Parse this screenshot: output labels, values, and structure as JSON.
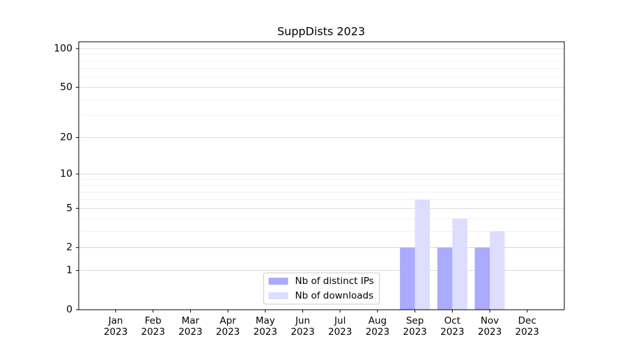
{
  "chart_data": {
    "type": "bar",
    "title": "SuppDists 2023",
    "categories": [
      "Jan\n2023",
      "Feb\n2023",
      "Mar\n2023",
      "Apr\n2023",
      "May\n2023",
      "Jun\n2023",
      "Jul\n2023",
      "Aug\n2023",
      "Sep\n2023",
      "Oct\n2023",
      "Nov\n2023",
      "Dec\n2023"
    ],
    "series": [
      {
        "name": "Nb of distinct IPs",
        "color": "#aaaaff",
        "values": [
          0,
          0,
          0,
          0,
          0,
          0,
          0,
          0,
          2,
          2,
          2,
          0
        ]
      },
      {
        "name": "Nb of downloads",
        "color": "#ddddff",
        "values": [
          0,
          0,
          0,
          0,
          0,
          0,
          0,
          0,
          6,
          4,
          3,
          0
        ]
      }
    ],
    "yscale": "log1p",
    "ylim": [
      0,
      113
    ],
    "yticks": [
      0,
      1,
      2,
      5,
      10,
      20,
      50,
      100
    ],
    "yticks_minor": [
      3,
      4,
      6,
      7,
      8,
      9,
      30,
      40,
      60,
      70,
      80,
      90
    ],
    "grid": true,
    "legend": "lower center"
  }
}
